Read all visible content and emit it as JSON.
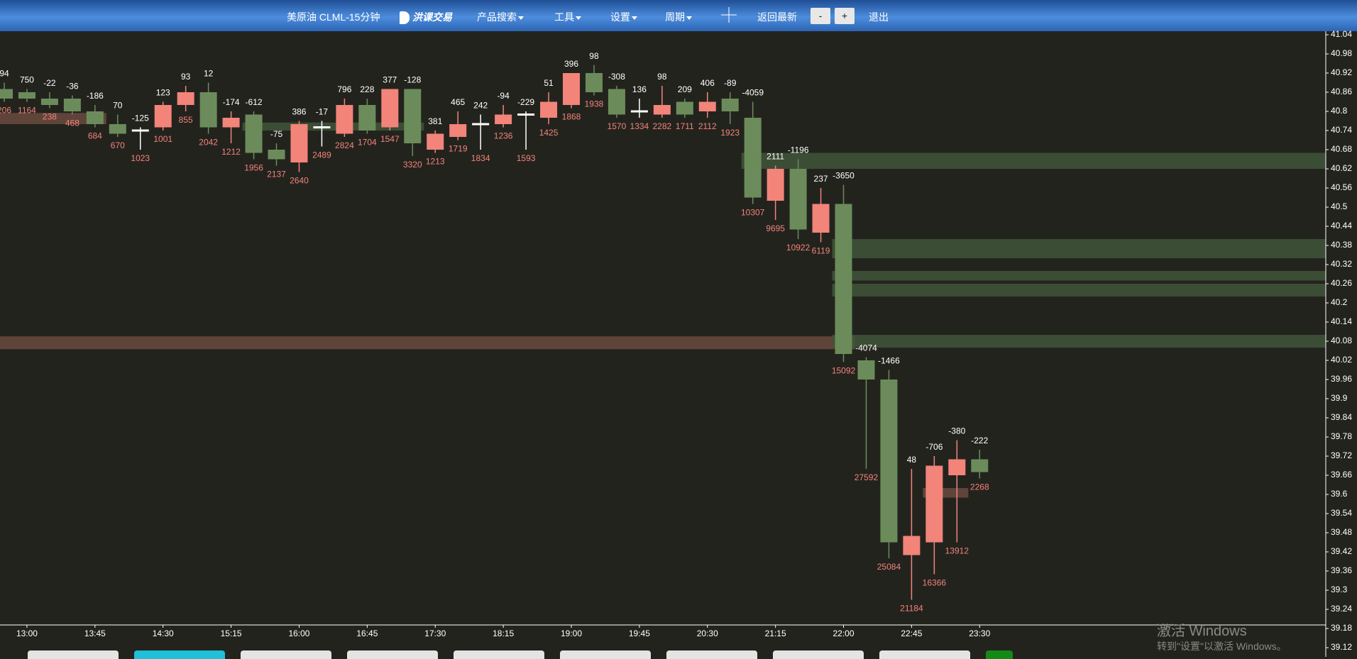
{
  "header": {
    "symbol": "美原油 CLML-15分钟",
    "logo": "洪课交易",
    "menu": [
      "产品搜索",
      "工具",
      "设置",
      "周期"
    ],
    "latest": "返回最新",
    "zoom_out": "-",
    "zoom_in": "+",
    "exit": "退出"
  },
  "watermark": {
    "line1": "激活 Windows",
    "line2": "转到\"设置\"以激活 Windows。"
  },
  "chart_data": {
    "type": "candlestick",
    "categories": [
      null,
      "13:00",
      null,
      null,
      "13:45",
      null,
      null,
      "14:30",
      null,
      null,
      "15:15",
      null,
      null,
      "16:00",
      null,
      null,
      "16:45",
      null,
      null,
      "17:30",
      null,
      null,
      "18:15",
      null,
      null,
      "19:00",
      null,
      null,
      "19:45",
      null,
      null,
      "20:30",
      null,
      null,
      "21:15",
      null,
      null,
      "22:00",
      null,
      null,
      "22:45",
      null,
      null,
      "23:30"
    ],
    "open": [
      40.87,
      40.86,
      40.84,
      40.84,
      40.8,
      40.76,
      40.74,
      40.75,
      40.82,
      40.86,
      40.75,
      40.79,
      40.68,
      40.64,
      40.75,
      40.73,
      40.82,
      40.75,
      40.87,
      40.68,
      40.72,
      40.76,
      40.76,
      40.79,
      40.78,
      40.82,
      40.92,
      40.87,
      40.8,
      40.79,
      40.83,
      40.8,
      40.84,
      40.78,
      40.52,
      40.62,
      40.42,
      40.51,
      40.02,
      39.96,
      39.41,
      39.45,
      39.66,
      39.71
    ],
    "high": [
      40.89,
      40.87,
      40.86,
      40.85,
      40.82,
      40.79,
      40.75,
      40.83,
      40.88,
      40.89,
      40.8,
      40.8,
      40.7,
      40.77,
      40.77,
      40.84,
      40.84,
      40.87,
      40.87,
      40.74,
      40.8,
      40.79,
      40.82,
      40.8,
      40.86,
      40.92,
      40.945,
      40.88,
      40.84,
      40.88,
      40.84,
      40.86,
      40.86,
      40.83,
      40.63,
      40.65,
      40.56,
      40.57,
      40.03,
      39.99,
      39.68,
      39.72,
      39.77,
      39.74
    ],
    "low": [
      40.83,
      40.83,
      40.81,
      40.79,
      40.75,
      40.72,
      40.68,
      40.74,
      40.8,
      40.73,
      40.7,
      40.65,
      40.63,
      40.61,
      40.69,
      40.72,
      40.73,
      40.74,
      40.66,
      40.67,
      40.71,
      40.68,
      40.75,
      40.68,
      40.76,
      40.81,
      40.85,
      40.78,
      40.78,
      40.78,
      40.78,
      40.78,
      40.76,
      40.51,
      40.46,
      40.4,
      40.39,
      40.015,
      39.68,
      39.4,
      39.27,
      39.35,
      39.45,
      39.65
    ],
    "close": [
      40.84,
      40.84,
      40.82,
      40.8,
      40.76,
      40.73,
      40.74,
      40.82,
      40.86,
      40.75,
      40.78,
      40.67,
      40.65,
      40.76,
      40.75,
      40.82,
      40.74,
      40.87,
      40.7,
      40.73,
      40.76,
      40.76,
      40.79,
      40.79,
      40.83,
      40.92,
      40.86,
      40.79,
      40.8,
      40.82,
      40.79,
      40.83,
      40.8,
      40.53,
      40.62,
      40.43,
      40.51,
      40.04,
      39.96,
      39.45,
      39.47,
      39.69,
      39.71,
      39.67
    ],
    "delta": [
      94,
      750,
      -22,
      -36,
      -186,
      70,
      -125,
      123,
      93,
      12,
      -174,
      -612,
      -75,
      386,
      -17,
      796,
      228,
      377,
      -128,
      381,
      465,
      242,
      -94,
      -229,
      51,
      396,
      98,
      -308,
      136,
      98,
      209,
      406,
      -89,
      -4059,
      2111,
      -1196,
      237,
      -3650,
      -4074,
      -1466,
      48,
      -706,
      -380,
      -222
    ],
    "volume": [
      206,
      1164,
      238,
      468,
      684,
      670,
      1023,
      1001,
      855,
      2042,
      1212,
      1956,
      2137,
      2640,
      2489,
      2824,
      1704,
      1547,
      3320,
      1213,
      1719,
      1834,
      1236,
      1593,
      1425,
      1868,
      1938,
      1570,
      1334,
      2282,
      1711,
      2112,
      1923,
      10307,
      9695,
      10922,
      6119,
      15092,
      27592,
      25084,
      21184,
      16366,
      13912,
      2268
    ],
    "up_color": "#f2847a",
    "down_color": "#6b8c5a",
    "doji_color": "#ffffff",
    "delta_color": "#ffffff",
    "volume_color": "#f2847a",
    "zones": [
      {
        "lo": 40.76,
        "hi": 40.795,
        "start": 0,
        "end": 4,
        "color": "#6a4a40"
      },
      {
        "lo": 40.74,
        "hi": 40.765,
        "start": 11,
        "end": 18,
        "color": "#3f5538"
      },
      {
        "lo": 40.055,
        "hi": 40.095,
        "start": 0,
        "end": 37,
        "color": "#6a4a40"
      },
      {
        "lo": 40.62,
        "hi": 40.67,
        "start": 33,
        "color": "#3f5538"
      },
      {
        "lo": 40.34,
        "hi": 40.4,
        "start": 37,
        "color": "#3f5538"
      },
      {
        "lo": 40.27,
        "hi": 40.3,
        "start": 37,
        "color": "#3f5538"
      },
      {
        "lo": 40.22,
        "hi": 40.26,
        "start": 37,
        "color": "#3f5538"
      },
      {
        "lo": 40.06,
        "hi": 40.1,
        "start": 37,
        "color": "#3f5538"
      },
      {
        "lo": 39.59,
        "hi": 39.62,
        "start": 41,
        "end": 42,
        "color": "#6a4a40"
      }
    ],
    "ylim": [
      39.12,
      41.04
    ],
    "yticks": [
      41.04,
      40.98,
      40.92,
      40.86,
      40.8,
      40.74,
      40.68,
      40.62,
      40.56,
      40.5,
      40.44,
      40.38,
      40.32,
      40.26,
      40.2,
      40.14,
      40.08,
      40.02,
      39.96,
      39.9,
      39.84,
      39.78,
      39.72,
      39.66,
      39.6,
      39.54,
      39.48,
      39.42,
      39.36,
      39.3,
      39.24,
      39.18,
      39.12
    ]
  }
}
